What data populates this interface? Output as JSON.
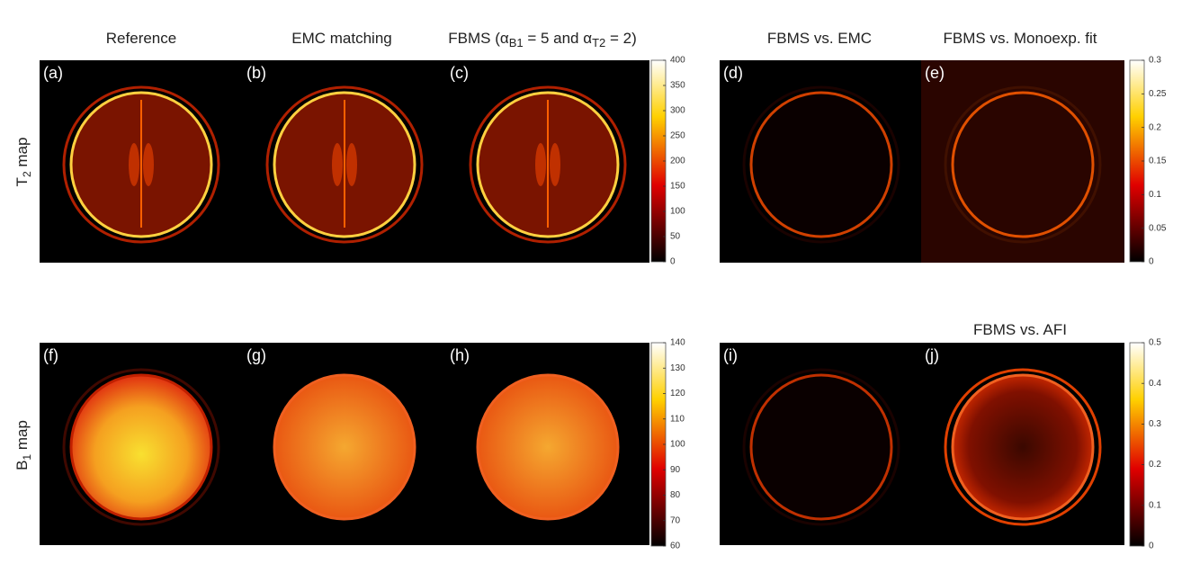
{
  "column_titles": [
    "Reference",
    "EMC matching",
    {
      "parts": [
        "FBMS (α",
        "B1",
        " = 5 and α",
        "T2",
        " = 2)"
      ]
    },
    "FBMS vs. EMC",
    "FBMS vs. Monoexp. fit"
  ],
  "extra_title": "FBMS vs. AFI",
  "row_labels": [
    {
      "main": "T",
      "sub": "2",
      "rest": " map"
    },
    {
      "main": "B",
      "sub": "1",
      "rest": " map"
    }
  ],
  "panel_labels": [
    "(a)",
    "(b)",
    "(c)",
    "(d)",
    "(e)",
    "(f)",
    "(g)",
    "(h)",
    "(i)",
    "(j)"
  ],
  "colorbars": [
    {
      "range": [
        0,
        400
      ],
      "ticks": [
        0,
        50,
        100,
        150,
        200,
        250,
        300,
        350,
        400
      ]
    },
    {
      "range": [
        0,
        0.3
      ],
      "ticks": [
        0,
        0.05,
        0.1,
        0.15,
        0.2,
        0.25,
        0.3
      ]
    },
    {
      "range": [
        60,
        140
      ],
      "ticks": [
        60,
        70,
        80,
        90,
        100,
        110,
        120,
        130,
        140
      ]
    },
    {
      "range": [
        0,
        0.5
      ],
      "ticks": [
        0,
        0.1,
        0.2,
        0.3,
        0.4,
        0.5
      ]
    }
  ]
}
